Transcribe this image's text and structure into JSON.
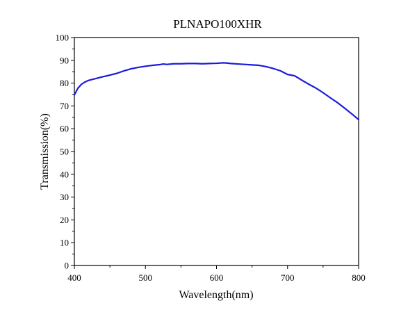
{
  "chart_data": {
    "type": "line",
    "title": "PLNAPO100XHR",
    "xlabel": "Wavelength(nm)",
    "ylabel": "Transmission(%)",
    "xlim": [
      400,
      800
    ],
    "ylim": [
      0,
      100
    ],
    "x_ticks": [
      "400",
      "500",
      "600",
      "700",
      "800"
    ],
    "y_ticks": [
      "0",
      "10",
      "20",
      "30",
      "40",
      "50",
      "60",
      "70",
      "80",
      "90",
      "100"
    ],
    "grid": false,
    "line_color": "#1a1adc",
    "series": [
      {
        "x": [
          400,
          405,
          410,
          415,
          420,
          430,
          440,
          450,
          460,
          470,
          480,
          490,
          500,
          510,
          520,
          525,
          530,
          540,
          550,
          560,
          570,
          580,
          590,
          600,
          610,
          615,
          620,
          630,
          640,
          650,
          660,
          670,
          680,
          690,
          700,
          710,
          720,
          730,
          740,
          750,
          760,
          770,
          780,
          790,
          800
        ],
        "y": [
          74.8,
          77.8,
          79.5,
          80.5,
          81.2,
          82.0,
          82.8,
          83.5,
          84.3,
          85.4,
          86.3,
          86.9,
          87.4,
          87.8,
          88.1,
          88.4,
          88.2,
          88.5,
          88.5,
          88.6,
          88.6,
          88.5,
          88.6,
          88.7,
          88.9,
          88.8,
          88.6,
          88.4,
          88.2,
          88.0,
          87.8,
          87.2,
          86.4,
          85.4,
          83.8,
          83.2,
          81.3,
          79.5,
          77.8,
          75.8,
          73.6,
          71.5,
          69.1,
          66.6,
          64.0
        ]
      }
    ]
  }
}
